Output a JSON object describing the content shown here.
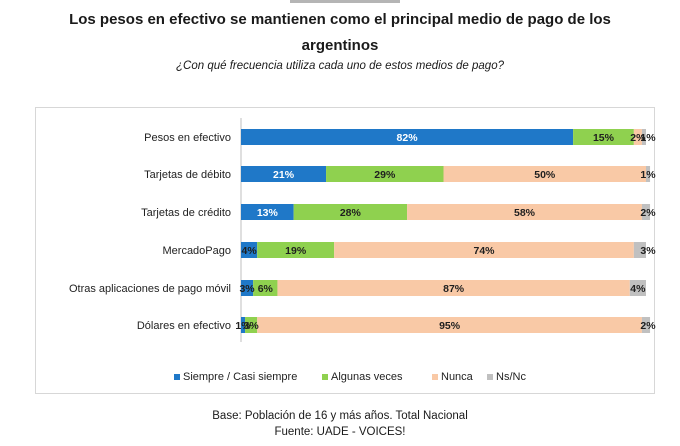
{
  "chart_data": {
    "type": "bar",
    "stacked": true,
    "orientation": "horizontal",
    "title_line1": "Los pesos en efectivo se mantienen como el principal medio de pago de los",
    "title_line2": "argentinos",
    "subtitle": "¿Con qué frecuencia utiliza cada uno de estos medios de pago?",
    "categories": [
      "Pesos en efectivo",
      "Tarjetas de débito",
      "Tarjetas de crédito",
      "MercadoPago",
      "Otras aplicaciones de pago móvil",
      "Dólares en efectivo"
    ],
    "series": [
      {
        "name": "Siempre / Casi siempre",
        "color": "#1f78c8",
        "values": [
          82,
          21,
          13,
          4,
          3,
          1
        ]
      },
      {
        "name": "Algunas veces",
        "color": "#8fd14f",
        "values": [
          15,
          29,
          28,
          19,
          6,
          3
        ]
      },
      {
        "name": "Nunca",
        "color": "#f9c9a6",
        "values": [
          2,
          50,
          58,
          74,
          87,
          95
        ]
      },
      {
        "name": "Ns/Nc",
        "color": "#c0c0c0",
        "values": [
          1,
          1,
          2,
          3,
          4,
          2
        ]
      }
    ],
    "value_suffix": "%",
    "legend_position": "bottom"
  },
  "footer": {
    "base": "Base: Población de 16 y más años. Total Nacional",
    "source": "Fuente: UADE - VOICES!"
  }
}
